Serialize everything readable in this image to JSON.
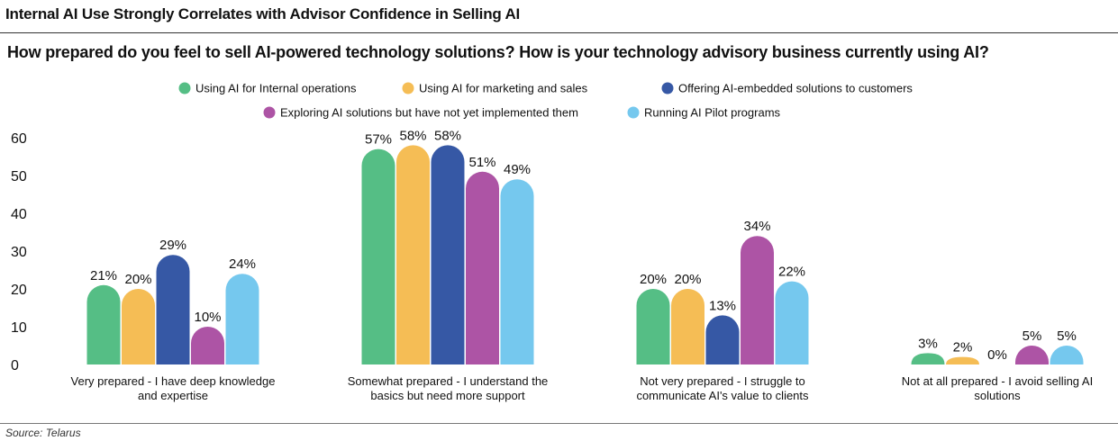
{
  "header": {
    "title": "Internal AI Use Strongly Correlates with Advisor Confidence in Selling AI",
    "subtitle": "How prepared do you feel to sell AI-powered technology solutions? How is your technology advisory business currently using AI?"
  },
  "source": "Source: Telarus",
  "chart_data": {
    "type": "bar",
    "title": "Internal AI Use Strongly Correlates with Advisor Confidence in Selling AI",
    "subtitle": "How prepared do you feel to sell AI-powered technology solutions? How is your technology advisory business currently using AI?",
    "categories": [
      [
        "Very prepared - I have deep knowledge",
        "and expertise"
      ],
      [
        "Somewhat prepared - I understand the",
        "basics but need more support"
      ],
      [
        "Not very prepared - I struggle to",
        "communicate AI's value to clients"
      ],
      [
        "Not at all prepared - I avoid selling AI",
        "solutions"
      ]
    ],
    "ylim": [
      0,
      60
    ],
    "yticks": [
      0,
      10,
      20,
      30,
      40,
      50,
      60
    ],
    "grid": false,
    "legend_position": "top-center",
    "series": [
      {
        "name": "Using AI for Internal operations",
        "color": "#55be85",
        "values": [
          21,
          57,
          20,
          3
        ],
        "labels": [
          "21%",
          "57%",
          "20%",
          "3%"
        ]
      },
      {
        "name": "Using AI for marketing and sales",
        "color": "#f5bd55",
        "values": [
          20,
          58,
          20,
          2
        ],
        "labels": [
          "20%",
          "58%",
          "20%",
          "2%"
        ]
      },
      {
        "name": "Offering AI-embedded solutions to customers",
        "color": "#3658a5",
        "values": [
          29,
          58,
          13,
          0
        ],
        "labels": [
          "29%",
          "58%",
          "13%",
          "0%"
        ]
      },
      {
        "name": "Exploring AI solutions but have not yet implemented them",
        "color": "#ad54a5",
        "values": [
          10,
          51,
          34,
          5
        ],
        "labels": [
          "10%",
          "51%",
          "34%",
          "5%"
        ]
      },
      {
        "name": "Running AI Pilot programs",
        "color": "#75c8ee",
        "values": [
          24,
          49,
          22,
          5
        ],
        "labels": [
          "24%",
          "49%",
          "22%",
          "5%"
        ]
      }
    ]
  }
}
